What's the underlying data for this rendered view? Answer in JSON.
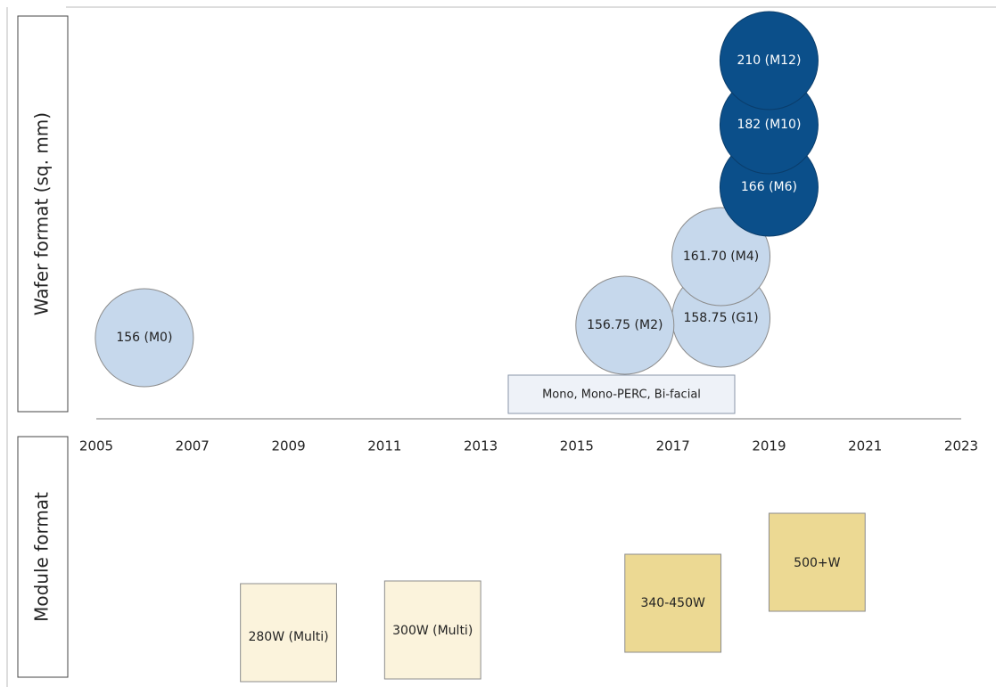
{
  "wafer_axis_label": "Wafer format (sq. mm)",
  "module_axis_label": "Module format",
  "years": [
    2005,
    2007,
    2009,
    2011,
    2013,
    2015,
    2017,
    2019,
    2021,
    2023
  ],
  "wafers": [
    {
      "label": "156 (M0)",
      "year": 2006
    },
    {
      "label": "158.75 (G1)",
      "year": 2018
    },
    {
      "label": "156.75 (M2)",
      "year": 2016
    },
    {
      "label": "161.70 (M4)",
      "year": 2018
    },
    {
      "label": "166 (M6)",
      "year": 2019
    },
    {
      "label": "182 (M10)",
      "year": 2019
    },
    {
      "label": "210 (M12)",
      "year": 2019
    }
  ],
  "note": "Mono, Mono-PERC, Bi-facial",
  "modules": [
    {
      "label": "280W (Multi)",
      "start": 2008,
      "end": 2010
    },
    {
      "label": "300W (Multi)",
      "start": 2011,
      "end": 2013
    },
    {
      "label": "340-450W",
      "start": 2016,
      "end": 2018
    },
    {
      "label": "500+W",
      "start": 2019,
      "end": 2021
    }
  ]
}
